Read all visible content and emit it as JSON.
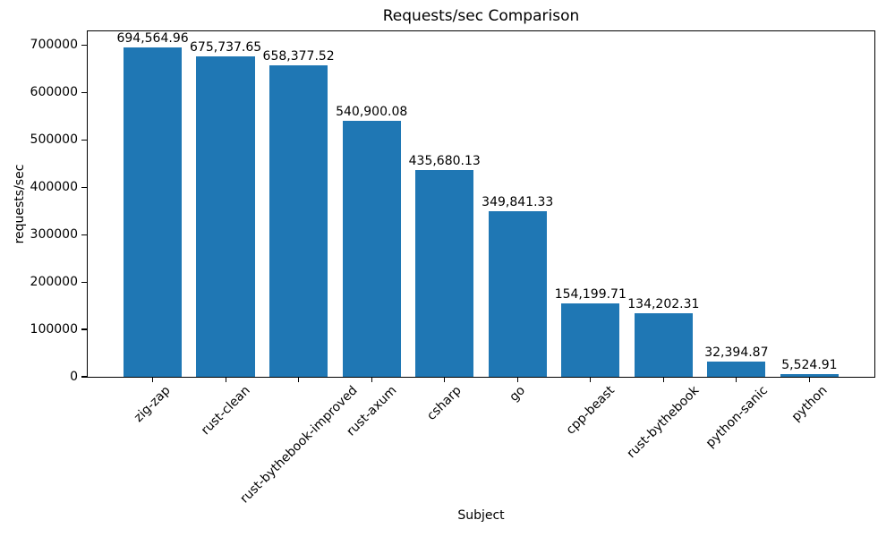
{
  "chart_data": {
    "type": "bar",
    "title": "Requests/sec Comparison",
    "xlabel": "Subject",
    "ylabel": "requests/sec",
    "categories": [
      "zig-zap",
      "rust-clean",
      "rust-bythebook-improved",
      "rust-axum",
      "csharp",
      "go",
      "cpp-beast",
      "rust-bythebook",
      "python-sanic",
      "python"
    ],
    "values": [
      694564.96,
      675737.65,
      658377.52,
      540900.08,
      435680.13,
      349841.33,
      154199.71,
      134202.31,
      32394.87,
      5524.91
    ],
    "value_labels": [
      "694,564.96",
      "675,737.65",
      "658,377.52",
      "540,900.08",
      "435,680.13",
      "349,841.33",
      "154,199.71",
      "134,202.31",
      "32,394.87",
      "5,524.91"
    ],
    "yticks": [
      0,
      100000,
      200000,
      300000,
      400000,
      500000,
      600000,
      700000
    ],
    "ytick_labels": [
      "0",
      "100000",
      "200000",
      "300000",
      "400000",
      "500000",
      "600000",
      "700000"
    ],
    "ylim": [
      0,
      729293
    ],
    "xlim": [
      -0.89,
      9.89
    ],
    "bar_width_units": 0.8,
    "bar_color": "#1f77b4",
    "grid": false,
    "legend": null,
    "xtick_rotation_deg": 45
  }
}
